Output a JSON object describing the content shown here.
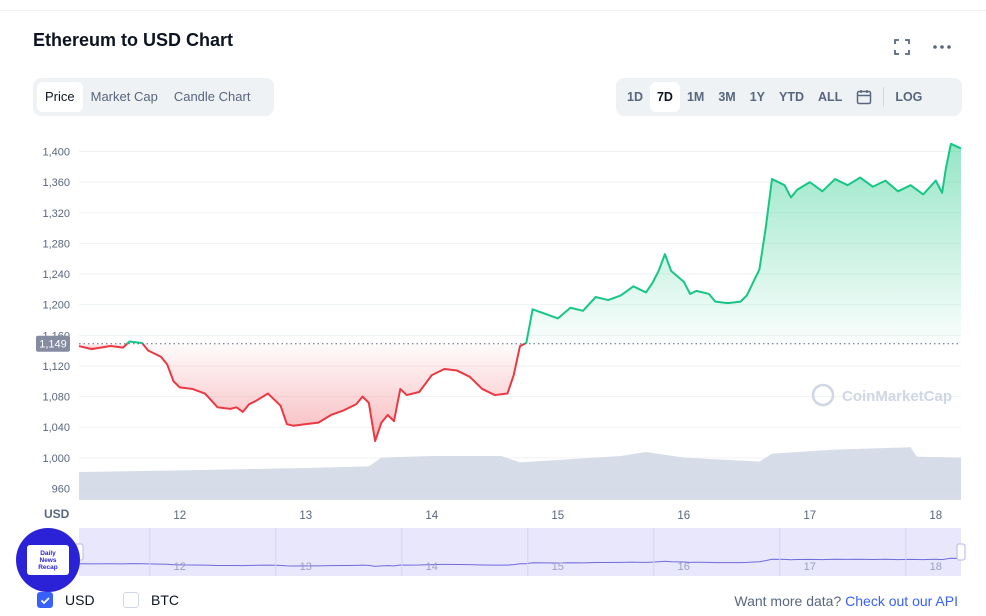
{
  "header": {
    "title": "Ethereum to USD Chart",
    "fullscreen_icon": "fullscreen-icon",
    "more_icon": "more-horizontal-icon"
  },
  "tabs_left": [
    {
      "label": "Price",
      "active": true
    },
    {
      "label": "Market Cap",
      "active": false
    },
    {
      "label": "Candle Chart",
      "active": false
    }
  ],
  "tabs_right": [
    {
      "label": "1D",
      "active": false
    },
    {
      "label": "7D",
      "active": true
    },
    {
      "label": "1M",
      "active": false
    },
    {
      "label": "3M",
      "active": false
    },
    {
      "label": "1Y",
      "active": false
    },
    {
      "label": "YTD",
      "active": false
    },
    {
      "label": "ALL",
      "active": false
    }
  ],
  "calendar_icon": "calendar-icon",
  "log_label": "LOG",
  "chart_data": {
    "type": "area",
    "x_unit": "day of month",
    "ylim": [
      945,
      1415
    ],
    "xlim": [
      11.2,
      18.2
    ],
    "yticks": [
      960,
      1000,
      1040,
      1080,
      1120,
      1160,
      1200,
      1240,
      1280,
      1320,
      1360,
      1400
    ],
    "ytick_labels": [
      "960",
      "1,000",
      "1,040",
      "1,080",
      "1,120",
      "1,160",
      "1,200",
      "1,240",
      "1,280",
      "1,320",
      "1,360",
      "1,400"
    ],
    "xticks": [
      12,
      13,
      14,
      15,
      16,
      17,
      18
    ],
    "xtick_labels": [
      "12",
      "13",
      "14",
      "15",
      "16",
      "17",
      "18"
    ],
    "y_axis_label": "USD",
    "baseline": {
      "value": 1149,
      "label": "1,149"
    },
    "colors": {
      "up": "#16c784",
      "down": "#ea3943",
      "volume": "#cfd6e4",
      "navigator": "#e9e7fb"
    },
    "watermark": "CoinMarketCap",
    "price": [
      [
        11.2,
        1146
      ],
      [
        11.3,
        1142
      ],
      [
        11.45,
        1146
      ],
      [
        11.55,
        1144
      ],
      [
        11.6,
        1152
      ],
      [
        11.7,
        1150
      ],
      [
        11.75,
        1140
      ],
      [
        11.85,
        1132
      ],
      [
        11.9,
        1122
      ],
      [
        11.95,
        1100
      ],
      [
        12.0,
        1092
      ],
      [
        12.1,
        1090
      ],
      [
        12.2,
        1084
      ],
      [
        12.3,
        1066
      ],
      [
        12.4,
        1064
      ],
      [
        12.45,
        1066
      ],
      [
        12.5,
        1060
      ],
      [
        12.55,
        1070
      ],
      [
        12.6,
        1074
      ],
      [
        12.7,
        1084
      ],
      [
        12.8,
        1068
      ],
      [
        12.85,
        1044
      ],
      [
        12.9,
        1042
      ],
      [
        13.0,
        1044
      ],
      [
        13.1,
        1046
      ],
      [
        13.2,
        1056
      ],
      [
        13.3,
        1062
      ],
      [
        13.4,
        1070
      ],
      [
        13.45,
        1080
      ],
      [
        13.5,
        1072
      ],
      [
        13.55,
        1022
      ],
      [
        13.6,
        1046
      ],
      [
        13.65,
        1056
      ],
      [
        13.7,
        1048
      ],
      [
        13.75,
        1090
      ],
      [
        13.8,
        1082
      ],
      [
        13.9,
        1086
      ],
      [
        14.0,
        1108
      ],
      [
        14.1,
        1116
      ],
      [
        14.2,
        1114
      ],
      [
        14.3,
        1106
      ],
      [
        14.4,
        1090
      ],
      [
        14.5,
        1082
      ],
      [
        14.6,
        1084
      ],
      [
        14.65,
        1108
      ],
      [
        14.7,
        1146
      ],
      [
        14.75,
        1150
      ],
      [
        14.8,
        1194
      ],
      [
        14.9,
        1188
      ],
      [
        15.0,
        1182
      ],
      [
        15.1,
        1196
      ],
      [
        15.2,
        1192
      ],
      [
        15.3,
        1210
      ],
      [
        15.4,
        1206
      ],
      [
        15.5,
        1212
      ],
      [
        15.6,
        1224
      ],
      [
        15.7,
        1216
      ],
      [
        15.75,
        1228
      ],
      [
        15.8,
        1244
      ],
      [
        15.85,
        1266
      ],
      [
        15.9,
        1244
      ],
      [
        16.0,
        1230
      ],
      [
        16.05,
        1214
      ],
      [
        16.1,
        1218
      ],
      [
        16.2,
        1214
      ],
      [
        16.25,
        1204
      ],
      [
        16.35,
        1202
      ],
      [
        16.45,
        1204
      ],
      [
        16.5,
        1212
      ],
      [
        16.6,
        1246
      ],
      [
        16.65,
        1300
      ],
      [
        16.7,
        1364
      ],
      [
        16.8,
        1356
      ],
      [
        16.85,
        1340
      ],
      [
        16.9,
        1350
      ],
      [
        17.0,
        1360
      ],
      [
        17.1,
        1348
      ],
      [
        17.2,
        1364
      ],
      [
        17.3,
        1356
      ],
      [
        17.4,
        1366
      ],
      [
        17.5,
        1354
      ],
      [
        17.6,
        1362
      ],
      [
        17.7,
        1348
      ],
      [
        17.8,
        1356
      ],
      [
        17.9,
        1344
      ],
      [
        18.0,
        1362
      ],
      [
        18.05,
        1346
      ],
      [
        18.08,
        1378
      ],
      [
        18.12,
        1410
      ],
      [
        18.2,
        1404
      ]
    ],
    "volume": [
      [
        11.2,
        0.35
      ],
      [
        12.0,
        0.37
      ],
      [
        13.0,
        0.4
      ],
      [
        13.5,
        0.42
      ],
      [
        13.6,
        0.53
      ],
      [
        14.0,
        0.55
      ],
      [
        14.55,
        0.55
      ],
      [
        14.7,
        0.47
      ],
      [
        15.0,
        0.5
      ],
      [
        15.5,
        0.55
      ],
      [
        15.7,
        0.6
      ],
      [
        16.0,
        0.53
      ],
      [
        16.6,
        0.48
      ],
      [
        16.7,
        0.58
      ],
      [
        17.2,
        0.63
      ],
      [
        17.8,
        0.66
      ],
      [
        17.85,
        0.54
      ],
      [
        18.2,
        0.53
      ]
    ]
  },
  "navigator": {
    "xtick_labels": [
      "12",
      "13",
      "14",
      "15",
      "16",
      "17",
      "18"
    ]
  },
  "footer": {
    "usd_label": "USD",
    "btc_label": "BTC",
    "api_text": "Want more data? ",
    "api_link": "Check out our API"
  },
  "badge": {
    "line1": "Daily",
    "line2": "News",
    "line3": "Recap"
  }
}
